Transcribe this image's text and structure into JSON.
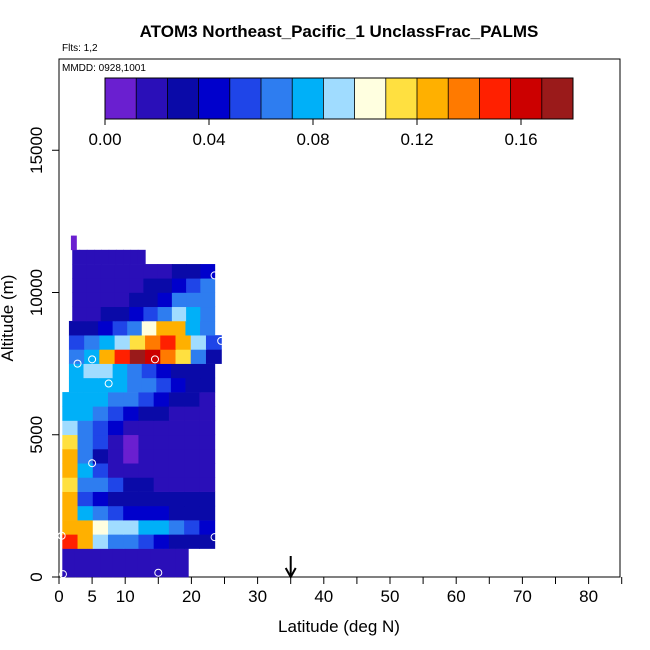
{
  "chart_data": {
    "type": "heatmap",
    "title": "ATOM3 Northeast_Pacific_1 UnclassFrac_PALMS",
    "annotations": {
      "flights": "Flts: 1,2",
      "dates": "MMDD: 0928,1001"
    },
    "xlabel": "Latitude (deg N)",
    "ylabel": "Altitude (m)",
    "xlim": [
      0,
      85
    ],
    "ylim": [
      0,
      18000
    ],
    "x_ticks": [
      0,
      5,
      10,
      20,
      30,
      40,
      50,
      60,
      70,
      80
    ],
    "x_minor_ticks": [
      15,
      25,
      35,
      45,
      55,
      65,
      75,
      85
    ],
    "y_ticks": [
      0,
      5000,
      10000,
      15000
    ],
    "grid": false,
    "colorbar": {
      "placement": "top",
      "range": [
        0,
        0.18
      ],
      "labels": [
        "0.00",
        "0.04",
        "0.08",
        "0.12",
        "0.16"
      ],
      "label_values": [
        0,
        0.04,
        0.08,
        0.12,
        0.16
      ],
      "colors": [
        "#6a1fd0",
        "#2a0fb8",
        "#0a0aa8",
        "#0000cc",
        "#1f45e8",
        "#2e7df0",
        "#00b0f8",
        "#a0dcff",
        "#ffffe0",
        "#ffe040",
        "#ffb000",
        "#ff7a00",
        "#ff2000",
        "#cc0000",
        "#9a1a1a"
      ]
    },
    "marker": {
      "x": 35,
      "symbol": "arrow-down"
    },
    "profiles": [
      {
        "alt": [
          0,
          1000
        ],
        "x0": 0.5,
        "x1": 19.5,
        "v": [
          0.018,
          0.02,
          0.018,
          0.02,
          0.02,
          0.018,
          0.02,
          0.02,
          0.018,
          0.02
        ]
      },
      {
        "alt": [
          1000,
          1500
        ],
        "x0": 0.5,
        "x1": 23.5,
        "v": [
          0.15,
          0.13,
          0.09,
          0.07,
          0.06,
          0.05,
          0.04,
          0.035,
          0.03,
          0.03
        ]
      },
      {
        "alt": [
          1500,
          2000
        ],
        "x0": 0.5,
        "x1": 23.5,
        "v": [
          0.13,
          0.12,
          0.1,
          0.09,
          0.085,
          0.08,
          0.075,
          0.06,
          0.05,
          0.045
        ]
      },
      {
        "alt": [
          2000,
          2500
        ],
        "x0": 0.5,
        "x1": 23.5,
        "v": [
          0.12,
          0.08,
          0.06,
          0.05,
          0.045,
          0.04,
          0.04,
          0.035,
          0.035,
          0.03
        ]
      },
      {
        "alt": [
          2500,
          3000
        ],
        "x0": 0.5,
        "x1": 23.5,
        "v": [
          0.12,
          0.05,
          0.04,
          0.035,
          0.03,
          0.03,
          0.028,
          0.025,
          0.025,
          0.025
        ]
      },
      {
        "alt": [
          3000,
          3500
        ],
        "x0": 0.5,
        "x1": 23.5,
        "v": [
          0.11,
          0.07,
          0.06,
          0.05,
          0.03,
          0.025,
          0.02,
          0.02,
          0.02,
          0.02
        ]
      },
      {
        "alt": [
          3500,
          4000
        ],
        "x0": 0.5,
        "x1": 23.5,
        "v": [
          0.12,
          0.08,
          0.05,
          0.015,
          0.012,
          0.02,
          0.022,
          0.022,
          0.02,
          0.02
        ]
      },
      {
        "alt": [
          4000,
          4500
        ],
        "x0": 0.5,
        "x1": 23.5,
        "v": [
          0.12,
          0.06,
          0.03,
          0.012,
          0.01,
          0.012,
          0.015,
          0.02,
          0.02,
          0.02
        ]
      },
      {
        "alt": [
          4500,
          5000
        ],
        "x0": 0.5,
        "x1": 23.5,
        "v": [
          0.11,
          0.07,
          0.05,
          0.012,
          0.01,
          0.012,
          0.015,
          0.018,
          0.02,
          0.02
        ]
      },
      {
        "alt": [
          5000,
          5500
        ],
        "x0": 0.5,
        "x1": 23.5,
        "v": [
          0.09,
          0.07,
          0.05,
          0.04,
          0.014,
          0.016,
          0.02,
          0.02,
          0.02,
          0.02
        ]
      },
      {
        "alt": [
          5500,
          6000
        ],
        "x0": 0.5,
        "x1": 23.5,
        "v": [
          0.08,
          0.075,
          0.06,
          0.05,
          0.04,
          0.03,
          0.025,
          0.02,
          0.02,
          0.02
        ]
      },
      {
        "alt": [
          6000,
          6500
        ],
        "x0": 0.5,
        "x1": 23.5,
        "v": [
          0.08,
          0.08,
          0.075,
          0.07,
          0.06,
          0.05,
          0.04,
          0.03,
          0.025,
          0.02
        ]
      },
      {
        "alt": [
          6500,
          7000
        ],
        "x0": 1.5,
        "x1": 23.5,
        "v": [
          0.075,
          0.08,
          0.08,
          0.075,
          0.07,
          0.06,
          0.05,
          0.04,
          0.03,
          0.025
        ]
      },
      {
        "alt": [
          7000,
          7500
        ],
        "x0": 1.5,
        "x1": 23.5,
        "v": [
          0.08,
          0.085,
          0.09,
          0.08,
          0.06,
          0.05,
          0.045,
          0.035,
          0.03,
          0.025
        ]
      },
      {
        "alt": [
          7500,
          8000
        ],
        "x0": 1.5,
        "x1": 24.5,
        "v": [
          0.06,
          0.08,
          0.12,
          0.15,
          0.17,
          0.16,
          0.14,
          0.11,
          0.07,
          0.03
        ]
      },
      {
        "alt": [
          8000,
          8500
        ],
        "x0": 1.5,
        "x1": 24.5,
        "v": [
          0.05,
          0.06,
          0.075,
          0.09,
          0.11,
          0.14,
          0.15,
          0.12,
          0.09,
          0.05
        ]
      },
      {
        "alt": [
          8500,
          9000
        ],
        "x0": 1.5,
        "x1": 23.5,
        "v": [
          0.03,
          0.035,
          0.04,
          0.05,
          0.07,
          0.1,
          0.13,
          0.12,
          0.08,
          0.06
        ]
      },
      {
        "alt": [
          9000,
          9500
        ],
        "x0": 2,
        "x1": 23.5,
        "v": [
          0.02,
          0.02,
          0.025,
          0.03,
          0.04,
          0.05,
          0.07,
          0.09,
          0.08,
          0.06
        ]
      },
      {
        "alt": [
          9500,
          10000
        ],
        "x0": 2,
        "x1": 23.5,
        "v": [
          0.018,
          0.018,
          0.02,
          0.022,
          0.025,
          0.03,
          0.04,
          0.06,
          0.07,
          0.06
        ]
      },
      {
        "alt": [
          10000,
          10500
        ],
        "x0": 2,
        "x1": 23.5,
        "v": [
          0.015,
          0.015,
          0.018,
          0.02,
          0.02,
          0.025,
          0.03,
          0.04,
          0.05,
          0.06
        ]
      },
      {
        "alt": [
          10500,
          11000
        ],
        "x0": 2,
        "x1": 23.5,
        "v": [
          0.012,
          0.015,
          0.015,
          0.018,
          0.02,
          0.02,
          0.022,
          0.025,
          0.03,
          0.04
        ]
      },
      {
        "alt": [
          11000,
          11500
        ],
        "x0": 2,
        "x1": 13,
        "v": [
          0.012,
          0.012,
          0.015,
          0.015,
          0.018,
          0.018,
          0.02,
          0.02,
          0.02,
          0.022
        ]
      },
      {
        "alt": [
          11500,
          12000
        ],
        "x0": 1.8,
        "x1": 2.6,
        "v": [
          0.005,
          0.005
        ]
      }
    ],
    "points": [
      {
        "x": 0.6,
        "y": 100
      },
      {
        "x": 15,
        "y": 150
      },
      {
        "x": 0.4,
        "y": 1450
      },
      {
        "x": 23.5,
        "y": 1400
      },
      {
        "x": 5,
        "y": 4000
      },
      {
        "x": 7.5,
        "y": 6800
      },
      {
        "x": 2.8,
        "y": 7500
      },
      {
        "x": 5,
        "y": 7650
      },
      {
        "x": 14.5,
        "y": 7650
      },
      {
        "x": 24.5,
        "y": 8300
      },
      {
        "x": 23.5,
        "y": 10600
      }
    ]
  }
}
